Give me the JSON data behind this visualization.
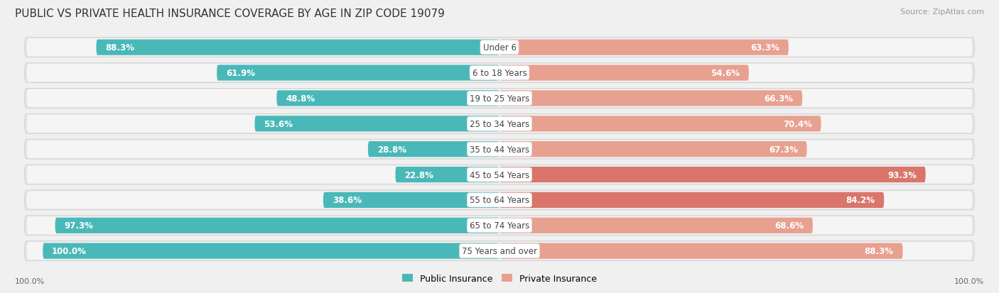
{
  "title": "PUBLIC VS PRIVATE HEALTH INSURANCE COVERAGE BY AGE IN ZIP CODE 19079",
  "source": "Source: ZipAtlas.com",
  "categories": [
    "Under 6",
    "6 to 18 Years",
    "19 to 25 Years",
    "25 to 34 Years",
    "35 to 44 Years",
    "45 to 54 Years",
    "55 to 64 Years",
    "65 to 74 Years",
    "75 Years and over"
  ],
  "public_values": [
    88.3,
    61.9,
    48.8,
    53.6,
    28.8,
    22.8,
    38.6,
    97.3,
    100.0
  ],
  "private_values": [
    63.3,
    54.6,
    66.3,
    70.4,
    67.3,
    93.3,
    84.2,
    68.6,
    88.3
  ],
  "public_color": "#4ab8b8",
  "private_color_light": "#e8a090",
  "private_color_dark": "#d9756a",
  "private_colors": [
    "#e8a090",
    "#e8a090",
    "#e8a090",
    "#e8a090",
    "#e8a090",
    "#d9756a",
    "#d9756a",
    "#e8a090",
    "#e8a090"
  ],
  "bg_color": "#f0f0f0",
  "row_pill_color": "#e8e8e8",
  "title_fontsize": 11,
  "source_fontsize": 8,
  "label_fontsize": 8.5,
  "legend_fontsize": 9,
  "axis_label_fontsize": 8
}
